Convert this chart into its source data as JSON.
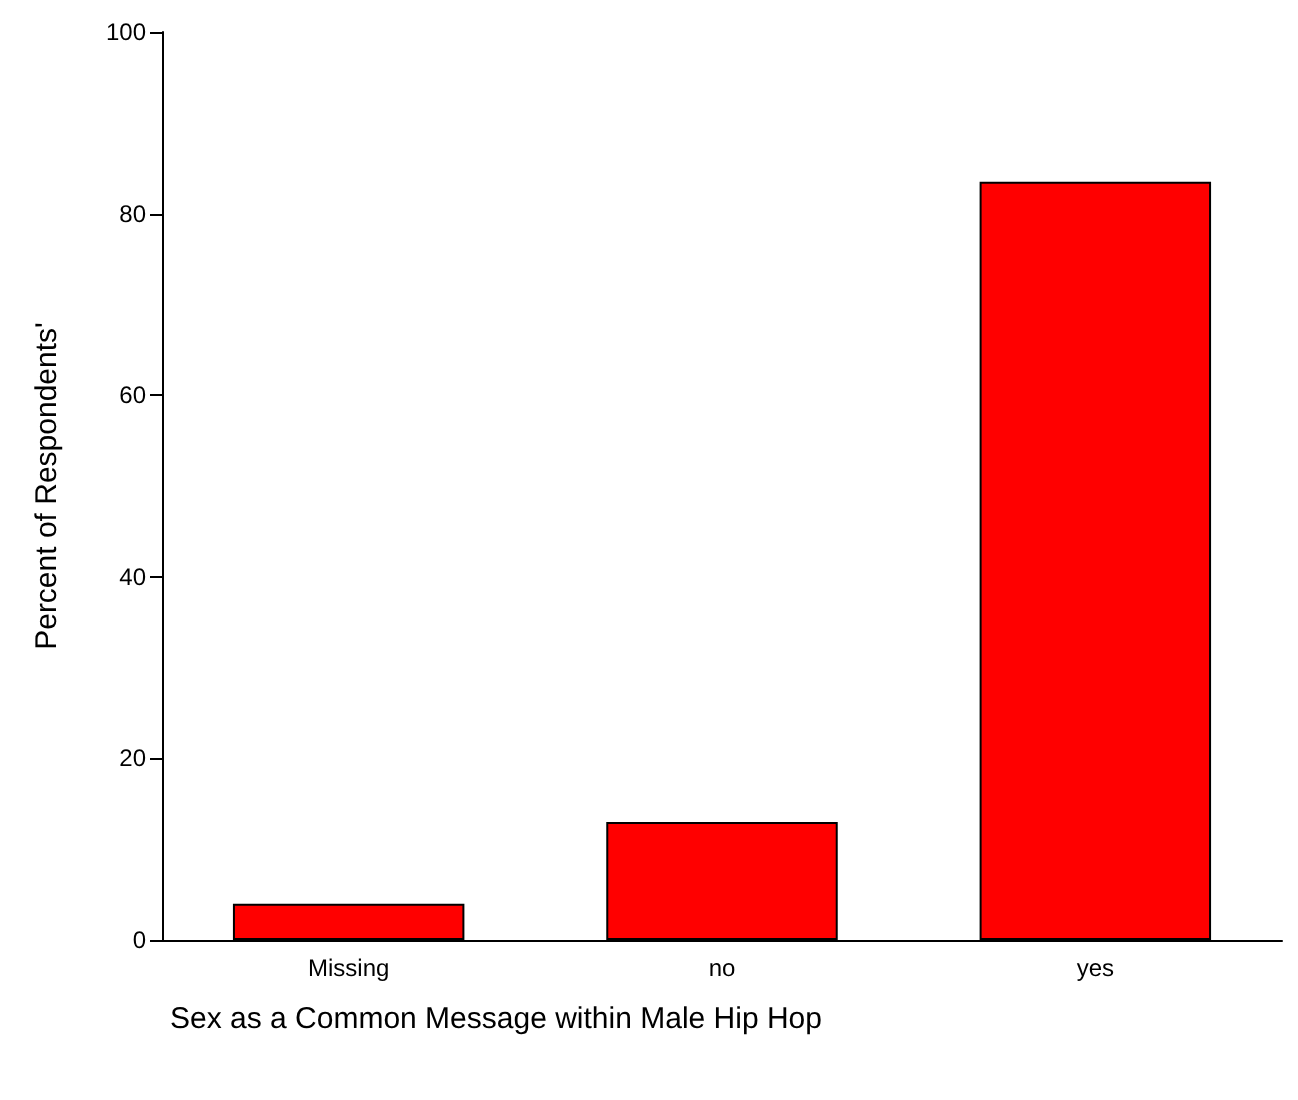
{
  "chart_data": {
    "type": "bar",
    "xlabel": "Sex as a Common Message within Male Hip Hop",
    "ylabel": "Percent of Respondents'",
    "categories": [
      "Missing",
      "no",
      "yes"
    ],
    "values": [
      4,
      13,
      83.5
    ],
    "color": "#ff0000",
    "ylim": [
      0,
      100
    ],
    "yticks": [
      0,
      20,
      40,
      60,
      80,
      100
    ],
    "grid": false
  }
}
